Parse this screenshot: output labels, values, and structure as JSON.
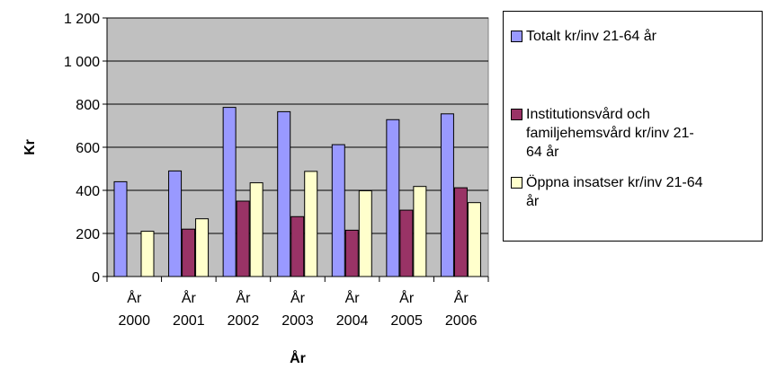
{
  "chart_data": {
    "type": "bar",
    "xlabel": "År",
    "ylabel": "Kr",
    "ylim": [
      0,
      1200
    ],
    "yticks": [
      0,
      200,
      400,
      600,
      800,
      1000,
      1200
    ],
    "ytick_labels": [
      "0",
      "200",
      "400",
      "600",
      "800",
      "1 000",
      "1 200"
    ],
    "categories": [
      [
        "År",
        "2000"
      ],
      [
        "År",
        "2001"
      ],
      [
        "År",
        "2002"
      ],
      [
        "År",
        "2003"
      ],
      [
        "År",
        "2004"
      ],
      [
        "År",
        "2005"
      ],
      [
        "År",
        "2006"
      ]
    ],
    "grid": true,
    "legend_position": "right",
    "plot_background": "#c0c0c0",
    "series": [
      {
        "name": "Totalt kr/inv 21-64 år",
        "color": "#9999ff",
        "values": [
          440,
          490,
          785,
          765,
          612,
          728,
          755
        ]
      },
      {
        "name": "Institutionsvård och familjehemsvård kr/inv 21-64 år",
        "color": "#993366",
        "values": [
          0,
          220,
          350,
          278,
          215,
          308,
          412
        ]
      },
      {
        "name": "Öppna insatser kr/inv 21-64 år",
        "color": "#ffffcc",
        "values": [
          210,
          268,
          435,
          488,
          398,
          418,
          343
        ]
      }
    ]
  },
  "legend": {
    "lines": [
      [
        "Totalt kr/inv 21-64 år"
      ],
      [
        "Institutionsvård och",
        "familjehemsvård kr/inv 21-",
        "64 år"
      ],
      [
        "Öppna insatser kr/inv 21-64",
        "år"
      ]
    ]
  }
}
